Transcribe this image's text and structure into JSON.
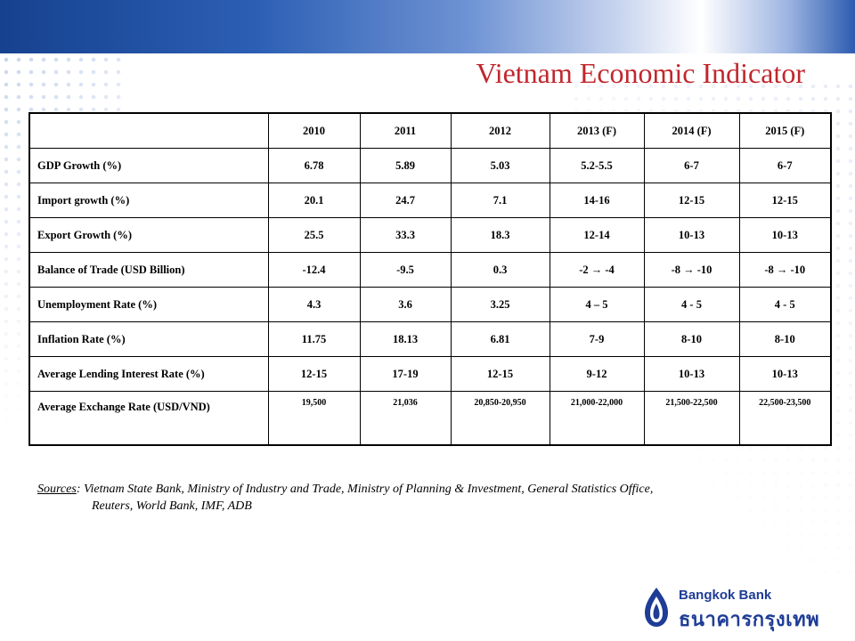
{
  "title": "Vietnam Economic Indicator",
  "colors": {
    "title": "#c0272d",
    "brand_blue": "#1f3d96",
    "band_blue": "#16418f"
  },
  "table": {
    "columns": [
      "",
      "2010",
      "2011",
      "2012",
      "2013 (F)",
      "2014 (F)",
      "2015 (F)"
    ],
    "rows": [
      {
        "label": "GDP Growth (%)",
        "values": [
          "6.78",
          "5.89",
          "5.03",
          "5.2-5.5",
          "6-7",
          "6-7"
        ]
      },
      {
        "label": "Import growth (%)",
        "values": [
          "20.1",
          "24.7",
          "7.1",
          "14-16",
          "12-15",
          "12-15"
        ]
      },
      {
        "label": "Export Growth (%)",
        "values": [
          "25.5",
          "33.3",
          "18.3",
          "12-14",
          "10-13",
          "10-13"
        ]
      },
      {
        "label": "Balance of Trade (USD Billion)",
        "values": [
          "-12.4",
          "-9.5",
          "0.3",
          "-2 → -4",
          "-8 → -10",
          "-8 → -10"
        ]
      },
      {
        "label": "Unemployment Rate (%)",
        "values": [
          "4.3",
          "3.6",
          "3.25",
          "4 – 5",
          "4 - 5",
          "4 - 5"
        ]
      },
      {
        "label": "Inflation Rate (%)",
        "values": [
          "11.75",
          "18.13",
          "6.81",
          "7-9",
          "8-10",
          "8-10"
        ]
      },
      {
        "label": "Average Lending Interest Rate (%)",
        "values": [
          "12-15",
          "17-19",
          "12-15",
          "9-12",
          "10-13",
          "10-13"
        ]
      },
      {
        "label": "Average Exchange Rate (USD/VND)",
        "values": [
          "19,500",
          "21,036",
          "20,850-20,950",
          "21,000-22,000",
          "21,500-22,500",
          "22,500-23,500"
        ]
      }
    ]
  },
  "sources": {
    "label": "Sources",
    "line1": "Vietnam State Bank, Ministry of Industry and Trade, Ministry of Planning & Investment, General Statistics Office,",
    "line2": "Reuters, World Bank, IMF, ADB"
  },
  "logo": {
    "name_en": "Bangkok Bank",
    "name_th": "ธนาคารกรุงเทพ",
    "icon": "bangkok-bank-lotus-logo"
  }
}
